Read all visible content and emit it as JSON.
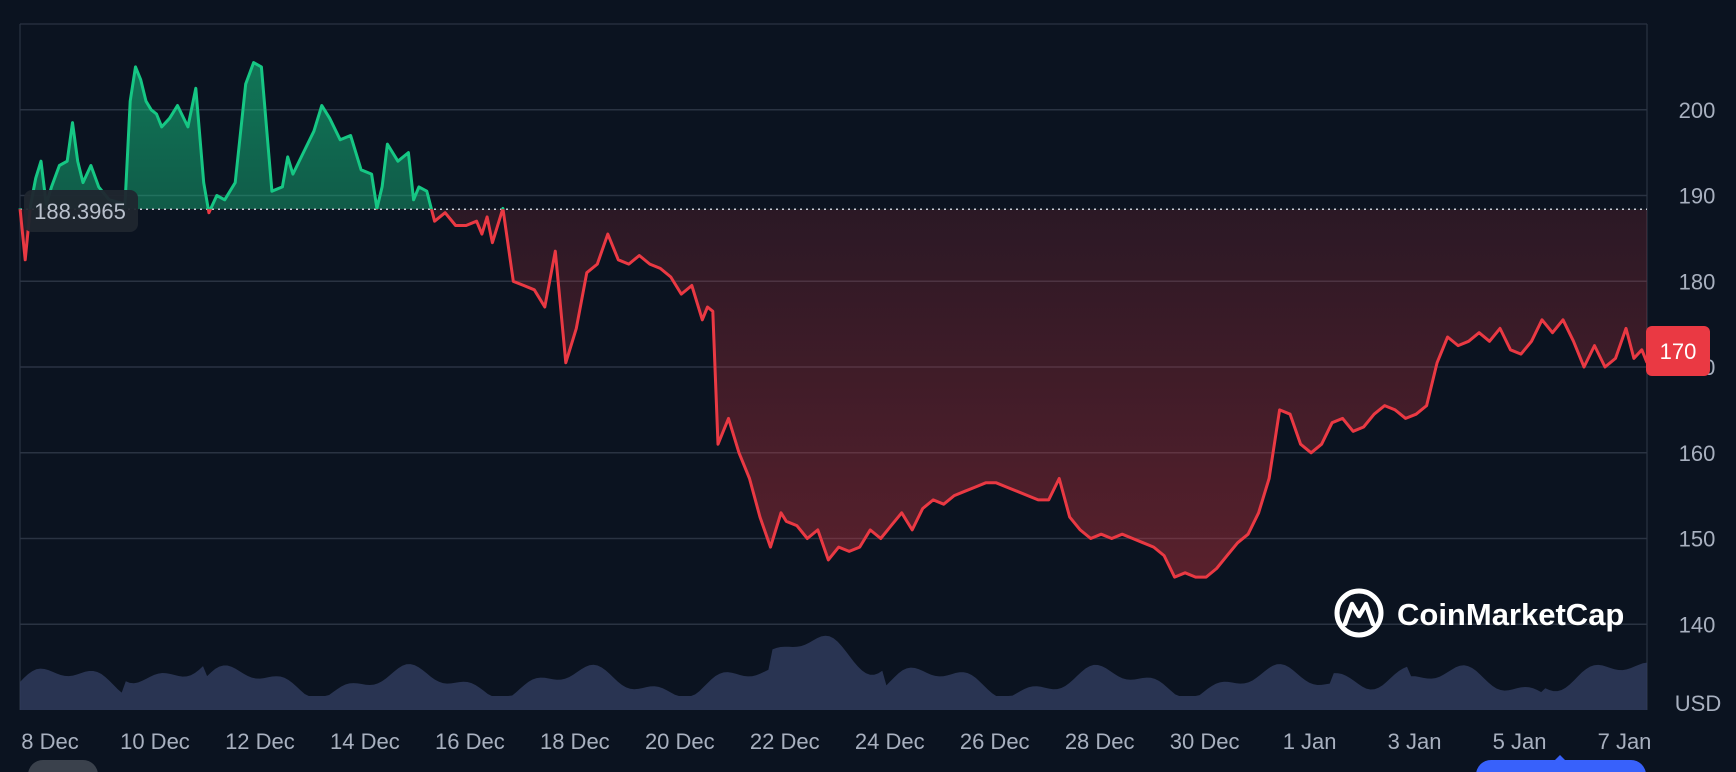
{
  "chart_data": {
    "type": "area",
    "reference_value": "188.3965",
    "reference_numeric": 188.3965,
    "current_price_label": "170",
    "currency": "USD",
    "ylim": [
      130,
      210
    ],
    "y_ticks": [
      "140",
      "150",
      "160",
      "170",
      "180",
      "190",
      "200"
    ],
    "x_ticks": [
      "8 Dec",
      "10 Dec",
      "12 Dec",
      "14 Dec",
      "16 Dec",
      "18 Dec",
      "20 Dec",
      "22 Dec",
      "24 Dec",
      "26 Dec",
      "28 Dec",
      "30 Dec",
      "1 Jan",
      "3 Jan",
      "5 Jan",
      "7 Jan"
    ],
    "x_range": [
      0,
      31
    ],
    "colors": {
      "up": "#16c784",
      "down": "#ea3943",
      "volume": "#2f3b5c",
      "grid": "#2a3342"
    },
    "series": [
      {
        "x": [
          0.0,
          0.1,
          0.2,
          0.3,
          0.4,
          0.5,
          0.6,
          0.75,
          0.9,
          1.0,
          1.1,
          1.2,
          1.35,
          1.5,
          1.7,
          2.0,
          2.1,
          2.2,
          2.3,
          2.4,
          2.5,
          2.6,
          2.7,
          2.85,
          3.0,
          3.2,
          3.35,
          3.5,
          3.6,
          3.75,
          3.9,
          4.1,
          4.3,
          4.45,
          4.6,
          4.8,
          5.0,
          5.1,
          5.2,
          5.4,
          5.6,
          5.75,
          5.9,
          6.1,
          6.3,
          6.5,
          6.7,
          6.8,
          6.9,
          7.0,
          7.2,
          7.4,
          7.5,
          7.6,
          7.75,
          7.9,
          8.1,
          8.3,
          8.5,
          8.7,
          8.8,
          8.9,
          9.0,
          9.2,
          9.4,
          9.6,
          9.8,
          10.0,
          10.2,
          10.4,
          10.6,
          10.8,
          11.0,
          11.2,
          11.4,
          11.6,
          11.8,
          12.0,
          12.2,
          12.4,
          12.6,
          12.8,
          13.0,
          13.1,
          13.2,
          13.3,
          13.5,
          13.7,
          13.9,
          14.1,
          14.3,
          14.5,
          14.6,
          14.8,
          15.0,
          15.2,
          15.4,
          15.6,
          15.8,
          16.0,
          16.2,
          16.4,
          16.6,
          16.8,
          17.0,
          17.2,
          17.4,
          17.6,
          17.8,
          18.0,
          18.2,
          18.4,
          18.6,
          18.8,
          19.0,
          19.2,
          19.4,
          19.6,
          19.8,
          20.0,
          20.2,
          20.4,
          20.6,
          20.8,
          21.0,
          21.2,
          21.4,
          21.6,
          21.8,
          22.0,
          22.2,
          22.4,
          22.6,
          22.8,
          23.0,
          23.2,
          23.4,
          23.6,
          23.8,
          24.0,
          24.2,
          24.4,
          24.6,
          24.8,
          25.0,
          25.2,
          25.4,
          25.6,
          25.8,
          26.0,
          26.2,
          26.4,
          26.6,
          26.8,
          27.0,
          27.2,
          27.4,
          27.6,
          27.8,
          28.0,
          28.2,
          28.4,
          28.6,
          28.8,
          29.0,
          29.2,
          29.4,
          29.6,
          29.8,
          30.0,
          30.2,
          30.4,
          30.6,
          30.75,
          30.9,
          31.0
        ],
        "y": [
          188.5,
          182.5,
          188.8,
          192.0,
          194.0,
          189.0,
          191.0,
          193.5,
          194.0,
          198.5,
          194.0,
          191.5,
          193.5,
          191.0,
          189.5,
          189.0,
          201.0,
          205.0,
          203.5,
          201.0,
          200.0,
          199.5,
          198.0,
          199.0,
          200.5,
          198.0,
          202.5,
          191.5,
          188.0,
          190.0,
          189.5,
          191.5,
          203.0,
          205.5,
          205.0,
          190.5,
          191.0,
          194.5,
          192.5,
          195.0,
          197.5,
          200.5,
          199.0,
          196.5,
          197.0,
          193.0,
          192.5,
          188.5,
          191.0,
          196.0,
          194.0,
          195.0,
          189.5,
          191.0,
          190.5,
          187.0,
          188.0,
          186.5,
          186.5,
          187.0,
          185.5,
          187.5,
          184.5,
          188.5,
          180.0,
          179.5,
          179.0,
          177.0,
          183.5,
          170.5,
          174.5,
          181.0,
          182.0,
          185.5,
          182.5,
          182.0,
          183.0,
          182.0,
          181.5,
          180.5,
          178.5,
          179.5,
          175.5,
          177.0,
          176.5,
          161.0,
          164.0,
          160.0,
          157.0,
          152.5,
          149.0,
          153.0,
          152.0,
          151.5,
          150.0,
          151.0,
          147.5,
          149.0,
          148.5,
          149.0,
          151.0,
          150.0,
          151.5,
          153.0,
          151.0,
          153.5,
          154.5,
          154.0,
          155.0,
          155.5,
          156.0,
          156.5,
          156.5,
          156.0,
          155.5,
          155.0,
          154.5,
          154.5,
          157.0,
          152.5,
          151.0,
          150.0,
          150.5,
          150.0,
          150.5,
          150.0,
          149.5,
          149.0,
          148.0,
          145.5,
          146.0,
          145.5,
          145.5,
          146.5,
          148.0,
          149.5,
          150.5,
          153.0,
          157.0,
          165.0,
          164.5,
          161.0,
          160.0,
          161.0,
          163.5,
          164.0,
          162.5,
          163.0,
          164.5,
          165.5,
          165.0,
          164.0,
          164.5,
          165.5,
          170.5,
          173.5,
          172.5,
          173.0,
          174.0,
          173.0,
          174.5,
          172.0,
          171.5,
          173.0,
          175.5,
          174.0,
          175.5,
          173.0,
          170.0,
          172.5,
          170.0,
          171.0,
          174.5,
          171.0,
          172.0,
          170.5
        ]
      }
    ]
  },
  "watermark": {
    "brand": "CoinMarketCap"
  }
}
